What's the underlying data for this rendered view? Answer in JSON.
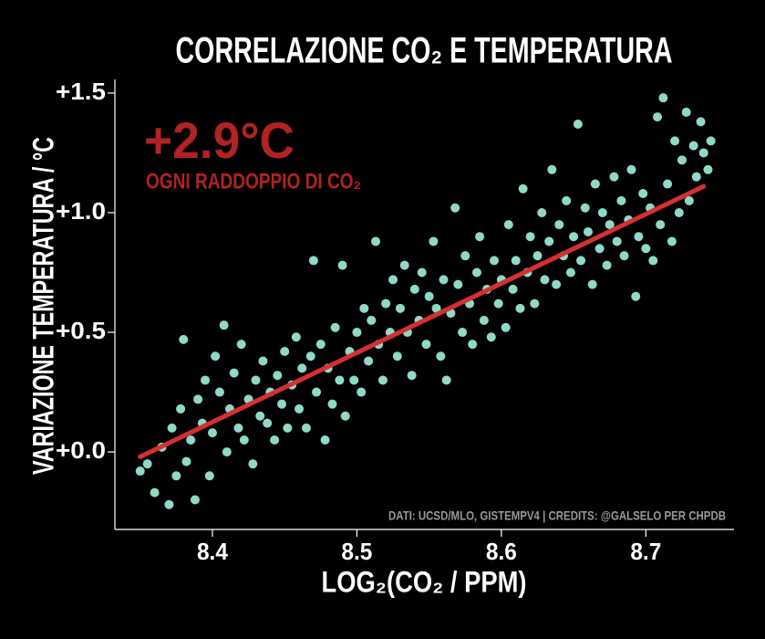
{
  "chart_data": {
    "type": "scatter",
    "title": "CORRELAZIONE CO₂ E TEMPERATURA",
    "xlabel": "LOG₂(CO₂ / PPM)",
    "ylabel": "VARIAZIONE TEMPERATURA / °C",
    "annotation": "+2.9°C",
    "annotation_subtitle": "OGNI RADDOPPIO DI CO₂",
    "credits": "DATI: UCSD/MLO, GISTEMPV4 | CREDITS: @GALSELO PER CHPDB",
    "color": "#8fd9c9",
    "annotation_color": "#b22222",
    "xlim": [
      8.3325,
      8.761
    ],
    "ylim": [
      -0.324,
      1.557
    ],
    "xticks": [
      8.4,
      8.5,
      8.6,
      8.7
    ],
    "yticks": [
      {
        "value": 0.0,
        "label": "+0.0"
      },
      {
        "value": 0.5,
        "label": "+0.5"
      },
      {
        "value": 1.0,
        "label": "+1.0"
      },
      {
        "value": 1.5,
        "label": "+1.5"
      }
    ],
    "trend": {
      "color": "#d62f2f",
      "x": [
        8.35,
        8.74
      ],
      "y": [
        -0.02,
        1.11
      ]
    },
    "x": [
      8.35,
      8.355,
      8.36,
      8.365,
      8.37,
      8.372,
      8.375,
      8.378,
      8.38,
      8.382,
      8.385,
      8.388,
      8.39,
      8.393,
      8.395,
      8.398,
      8.4,
      8.402,
      8.405,
      8.408,
      8.41,
      8.412,
      8.415,
      8.418,
      8.42,
      8.422,
      8.425,
      8.428,
      8.43,
      8.433,
      8.435,
      8.438,
      8.44,
      8.443,
      8.445,
      8.448,
      8.45,
      8.452,
      8.455,
      8.458,
      8.46,
      8.462,
      8.465,
      8.468,
      8.47,
      8.472,
      8.475,
      8.478,
      8.48,
      8.483,
      8.485,
      8.488,
      8.49,
      8.492,
      8.495,
      8.498,
      8.5,
      8.503,
      8.505,
      8.508,
      8.51,
      8.513,
      8.515,
      8.518,
      8.52,
      8.523,
      8.525,
      8.528,
      8.53,
      8.533,
      8.535,
      8.538,
      8.54,
      8.543,
      8.545,
      8.548,
      8.55,
      8.553,
      8.555,
      8.558,
      8.56,
      8.562,
      8.565,
      8.568,
      8.57,
      8.573,
      8.575,
      8.578,
      8.58,
      8.583,
      8.585,
      8.588,
      8.59,
      8.593,
      8.595,
      8.598,
      8.6,
      8.603,
      8.605,
      8.608,
      8.61,
      8.613,
      8.615,
      8.618,
      8.62,
      8.623,
      8.625,
      8.628,
      8.63,
      8.633,
      8.635,
      8.638,
      8.64,
      8.643,
      8.645,
      8.648,
      8.65,
      8.653,
      8.655,
      8.658,
      8.66,
      8.663,
      8.665,
      8.668,
      8.67,
      8.673,
      8.675,
      8.678,
      8.68,
      8.683,
      8.685,
      8.688,
      8.69,
      8.693,
      8.695,
      8.698,
      8.7,
      8.703,
      8.705,
      8.708,
      8.71,
      8.712,
      8.715,
      8.718,
      8.72,
      8.723,
      8.725,
      8.728,
      8.73,
      8.733,
      8.735,
      8.738,
      8.74,
      8.743,
      8.745
    ],
    "values": [
      -0.08,
      -0.05,
      -0.17,
      0.02,
      -0.22,
      0.1,
      -0.1,
      0.18,
      0.47,
      -0.04,
      0.05,
      -0.2,
      0.22,
      0.12,
      0.3,
      -0.1,
      0.08,
      0.4,
      0.25,
      0.53,
      0.0,
      0.18,
      0.33,
      0.1,
      0.45,
      0.05,
      0.22,
      -0.05,
      0.3,
      0.15,
      0.38,
      0.12,
      0.25,
      0.05,
      0.32,
      0.2,
      0.42,
      0.1,
      0.28,
      0.48,
      0.18,
      0.35,
      0.1,
      0.4,
      0.8,
      0.25,
      0.45,
      0.05,
      0.35,
      0.2,
      0.52,
      0.3,
      0.78,
      0.15,
      0.42,
      0.3,
      0.5,
      0.25,
      0.6,
      0.38,
      0.55,
      0.88,
      0.45,
      0.3,
      0.62,
      0.5,
      0.72,
      0.4,
      0.6,
      0.78,
      0.5,
      0.32,
      0.68,
      0.55,
      0.75,
      0.45,
      0.65,
      0.88,
      0.6,
      0.4,
      0.72,
      0.3,
      0.58,
      1.02,
      0.7,
      0.5,
      0.82,
      0.62,
      0.45,
      0.75,
      0.9,
      0.55,
      0.68,
      0.48,
      0.8,
      0.62,
      0.72,
      0.52,
      0.95,
      0.68,
      0.8,
      0.6,
      1.1,
      0.75,
      0.9,
      0.62,
      0.82,
      1.0,
      0.72,
      0.88,
      1.18,
      0.7,
      0.95,
      0.82,
      1.05,
      0.75,
      0.9,
      1.37,
      0.8,
      1.02,
      0.92,
      0.7,
      1.12,
      0.85,
      1.0,
      0.78,
      0.95,
      1.15,
      0.88,
      1.05,
      0.82,
      0.97,
      1.18,
      0.65,
      0.9,
      1.08,
      0.85,
      1.02,
      0.8,
      1.4,
      0.95,
      1.48,
      1.12,
      0.88,
      1.3,
      1.0,
      1.22,
      1.42,
      1.05,
      1.28,
      1.15,
      1.38,
      1.25,
      1.18,
      1.3
    ]
  }
}
